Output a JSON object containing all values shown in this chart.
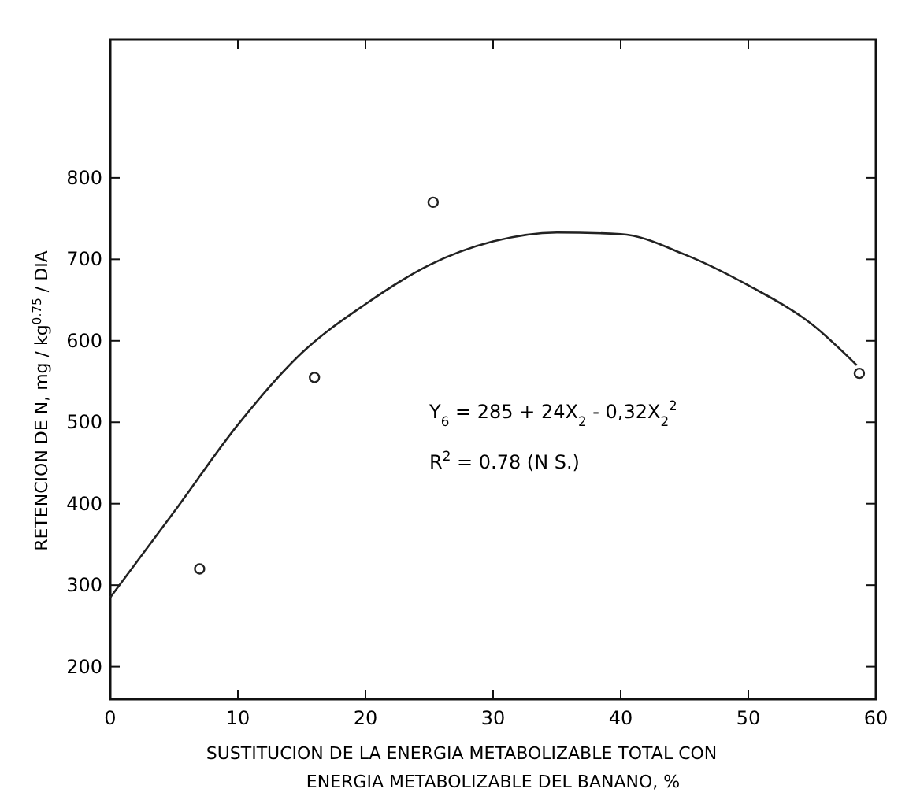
{
  "chart_data": {
    "type": "scatter",
    "xlabel": "SUSTITUCION  DE LA ENERGIA METABOLIZABLE TOTAL CON\nENERGIA METABOLIZABLE DEL BANANO, %",
    "ylabel": "RETENCION DE N, mg / kg$^{0.75}$ / DIA",
    "xlim": [
      0,
      60
    ],
    "xticks": [
      0,
      10,
      20,
      30,
      40,
      50,
      60
    ],
    "ylim": [
      160,
      970
    ],
    "yticks": [
      200,
      300,
      400,
      500,
      600,
      700,
      800
    ],
    "marker": "circle",
    "grid": false,
    "series": [
      {
        "color": "#222222",
        "x": [
          7,
          16,
          25.3,
          58.7
        ],
        "values": [
          320,
          555,
          770,
          560
        ]
      },
      {
        "type": "line",
        "color": "#222222",
        "marker": "none",
        "x": [
          0,
          5,
          10,
          15,
          20,
          25,
          30,
          35,
          40,
          45,
          50,
          55,
          58.5
        ],
        "values": [
          285,
          390,
          497,
          585,
          645,
          693,
          722,
          733,
          731,
          706,
          668,
          620,
          570
        ]
      }
    ],
    "annotations": [
      "Y$_{6}$ = 285 + 24X$_{2}$ - 0,32X$_{2}$$^{2}$",
      "R$^{2}$ = 0.78 (N S.)"
    ]
  }
}
